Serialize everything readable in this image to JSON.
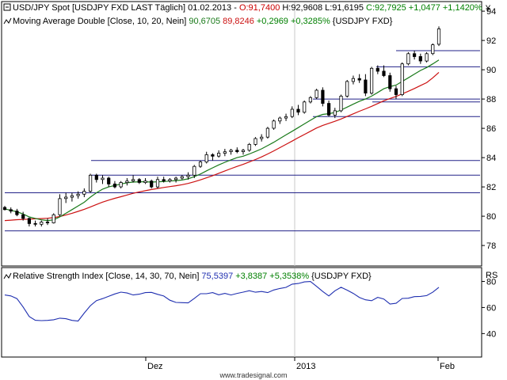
{
  "header": {
    "price_title": "USD/JPY Spot [USDJPY FXD LAST Täglich] 01.02.2013 - ",
    "ohlc_open": "O:91,7400",
    "ohlc_high": "H:92,9608",
    "ohlc_low": "L:91,6195",
    "ohlc_close": "C:92,7925",
    "change_abs": "+1,0477",
    "change_pct": "+1,1420%",
    "ma_title": "Moving Average Double [Close, 10, 20, Nein]",
    "ma_fast_value": "90,6705",
    "ma_slow_value": "89,8246",
    "ma_change_abs": "+0,2969",
    "ma_change_pct": "+0,3285%",
    "ma_symbol": "{USDJPY FXD}",
    "rsi_title": "Relative Strength Index [Close, 14, 30, 70, Nein]",
    "rsi_value": "75,5397",
    "rsi_change_abs": "+3,8387",
    "rsi_change_pct": "+5,3538%",
    "rsi_symbol": "{USDJPY FXD}"
  },
  "axis": {
    "price_unit": "¥",
    "rsi_unit": "RS",
    "watermark": "www.tradesignal.com",
    "price_ticks": [
      "94",
      "92",
      "90",
      "88",
      "86",
      "84",
      "82",
      "80",
      "78"
    ],
    "rsi_ticks": [
      "80",
      "60",
      "40"
    ],
    "time_ticks": [
      "Dez",
      "2013",
      "Feb"
    ]
  },
  "colors": {
    "up": "#000000",
    "down": "#000000",
    "up_fill": "#ffffff",
    "down_fill": "#000000",
    "ma_fast": "#1a7a1a",
    "ma_slow": "#cc1111",
    "hline": "#222288",
    "rsi": "#1f2fb0",
    "positive": "#008000",
    "negative": "#cc0000"
  },
  "chart_data": [
    {
      "type": "candlestick",
      "title": "USD/JPY Spot",
      "ylim": [
        76.6,
        94.6
      ],
      "y_ticks": [
        78,
        80,
        82,
        84,
        86,
        88,
        90,
        92,
        94
      ],
      "x_ticks": [
        "Dez",
        "2013",
        "Feb"
      ],
      "ohlc": [
        [
          80.6,
          80.7,
          80.4,
          80.45
        ],
        [
          80.45,
          80.6,
          80.2,
          80.35
        ],
        [
          80.35,
          80.5,
          80.0,
          80.1
        ],
        [
          80.1,
          80.3,
          79.7,
          79.85
        ],
        [
          79.85,
          79.9,
          79.3,
          79.5
        ],
        [
          79.5,
          79.7,
          79.3,
          79.45
        ],
        [
          79.45,
          79.7,
          79.3,
          79.6
        ],
        [
          79.6,
          79.85,
          79.4,
          79.55
        ],
        [
          79.55,
          80.2,
          79.5,
          80.1
        ],
        [
          80.1,
          81.5,
          80.0,
          81.2
        ],
        [
          81.2,
          81.6,
          80.9,
          81.3
        ],
        [
          81.3,
          81.6,
          81.0,
          81.4
        ],
        [
          81.4,
          81.7,
          81.2,
          81.5
        ],
        [
          81.5,
          81.9,
          81.3,
          81.7
        ],
        [
          81.7,
          82.9,
          81.6,
          82.8
        ],
        [
          82.8,
          82.9,
          82.3,
          82.5
        ],
        [
          82.5,
          82.8,
          82.2,
          82.6
        ],
        [
          82.6,
          82.7,
          82.0,
          82.2
        ],
        [
          82.2,
          82.4,
          81.9,
          82.0
        ],
        [
          82.0,
          82.4,
          81.9,
          82.3
        ],
        [
          82.3,
          82.6,
          82.1,
          82.4
        ],
        [
          82.4,
          82.8,
          82.3,
          82.5
        ],
        [
          82.5,
          82.6,
          82.2,
          82.3
        ],
        [
          82.3,
          82.6,
          82.2,
          82.4
        ],
        [
          82.4,
          82.5,
          81.9,
          82.0
        ],
        [
          82.0,
          82.7,
          81.9,
          82.5
        ],
        [
          82.5,
          82.7,
          82.3,
          82.4
        ],
        [
          82.4,
          82.6,
          82.3,
          82.5
        ],
        [
          82.5,
          82.7,
          82.3,
          82.6
        ],
        [
          82.6,
          82.8,
          82.5,
          82.7
        ],
        [
          82.7,
          83.0,
          82.5,
          82.8
        ],
        [
          82.8,
          83.5,
          82.6,
          83.4
        ],
        [
          83.4,
          83.8,
          83.3,
          83.7
        ],
        [
          83.7,
          84.4,
          83.6,
          84.2
        ],
        [
          84.2,
          84.3,
          83.8,
          84.1
        ],
        [
          84.1,
          84.5,
          84.0,
          84.3
        ],
        [
          84.3,
          84.6,
          84.1,
          84.4
        ],
        [
          84.4,
          84.6,
          84.2,
          84.5
        ],
        [
          84.5,
          84.7,
          84.3,
          84.4
        ],
        [
          84.4,
          84.6,
          84.2,
          84.5
        ],
        [
          84.5,
          85.0,
          84.4,
          84.9
        ],
        [
          84.9,
          85.4,
          84.8,
          85.3
        ],
        [
          85.3,
          85.6,
          85.1,
          85.4
        ],
        [
          85.4,
          86.1,
          85.3,
          86.0
        ],
        [
          86.0,
          86.6,
          85.9,
          86.5
        ],
        [
          86.5,
          86.8,
          86.3,
          86.7
        ],
        [
          86.7,
          87.0,
          86.5,
          86.8
        ],
        [
          86.8,
          87.5,
          86.7,
          87.3
        ],
        [
          87.3,
          87.6,
          86.9,
          87.1
        ],
        [
          87.1,
          87.9,
          87.0,
          87.8
        ],
        [
          87.8,
          88.2,
          87.7,
          88.1
        ],
        [
          88.1,
          88.7,
          88.0,
          88.6
        ],
        [
          88.6,
          88.8,
          87.5,
          87.7
        ],
        [
          87.7,
          87.9,
          86.8,
          86.9
        ],
        [
          86.9,
          87.4,
          86.7,
          87.2
        ],
        [
          87.2,
          88.3,
          87.1,
          88.2
        ],
        [
          88.2,
          89.3,
          88.1,
          89.2
        ],
        [
          89.2,
          89.6,
          89.0,
          89.4
        ],
        [
          89.4,
          89.7,
          89.1,
          89.3
        ],
        [
          89.3,
          89.7,
          88.2,
          88.4
        ],
        [
          88.4,
          90.2,
          88.3,
          90.1
        ],
        [
          90.1,
          90.3,
          89.7,
          89.9
        ],
        [
          89.9,
          90.3,
          89.5,
          89.6
        ],
        [
          89.6,
          89.8,
          88.5,
          88.7
        ],
        [
          88.7,
          88.9,
          88.0,
          88.3
        ],
        [
          88.3,
          90.5,
          88.2,
          90.4
        ],
        [
          90.4,
          91.2,
          90.3,
          91.1
        ],
        [
          91.1,
          91.3,
          90.7,
          90.9
        ],
        [
          90.9,
          91.1,
          90.4,
          90.6
        ],
        [
          90.6,
          91.2,
          90.5,
          91.1
        ],
        [
          91.1,
          91.8,
          91.0,
          91.7
        ],
        [
          91.74,
          92.96,
          91.62,
          92.79
        ]
      ],
      "series": [
        {
          "name": "MA 10",
          "values": [
            80.5,
            80.4,
            80.3,
            80.15,
            79.95,
            79.85,
            79.75,
            79.7,
            79.75,
            79.95,
            80.2,
            80.45,
            80.7,
            80.95,
            81.3,
            81.6,
            81.85,
            82.0,
            82.1,
            82.2,
            82.28,
            82.33,
            82.35,
            82.35,
            82.33,
            82.35,
            82.37,
            82.4,
            82.43,
            82.47,
            82.55,
            82.7,
            82.88,
            83.1,
            83.3,
            83.5,
            83.68,
            83.85,
            84.0,
            84.1,
            84.25,
            84.42,
            84.6,
            84.82,
            85.05,
            85.3,
            85.55,
            85.8,
            86.05,
            86.3,
            86.55,
            86.8,
            86.95,
            87.0,
            87.08,
            87.25,
            87.45,
            87.65,
            87.85,
            88.0,
            88.2,
            88.45,
            88.7,
            88.85,
            88.95,
            89.2,
            89.45,
            89.7,
            89.95,
            90.15,
            90.4,
            90.67
          ]
        },
        {
          "name": "MA 20",
          "values": [
            79.7,
            79.73,
            79.76,
            79.78,
            79.8,
            79.82,
            79.84,
            79.86,
            79.9,
            79.98,
            80.08,
            80.2,
            80.33,
            80.47,
            80.63,
            80.8,
            80.96,
            81.1,
            81.22,
            81.33,
            81.45,
            81.56,
            81.66,
            81.74,
            81.82,
            81.89,
            81.96,
            82.02,
            82.08,
            82.15,
            82.24,
            82.35,
            82.48,
            82.62,
            82.77,
            82.93,
            83.09,
            83.25,
            83.4,
            83.54,
            83.7,
            83.87,
            84.05,
            84.25,
            84.46,
            84.68,
            84.9,
            85.13,
            85.36,
            85.58,
            85.8,
            86.02,
            86.2,
            86.34,
            86.48,
            86.64,
            86.81,
            86.99,
            87.17,
            87.33,
            87.5,
            87.69,
            87.88,
            88.04,
            88.18,
            88.35,
            88.53,
            88.72,
            88.92,
            89.12,
            89.45,
            89.82
          ]
        },
        {
          "name": "Relative Strength Index",
          "values": [
            69.6,
            68.9,
            66.8,
            60.4,
            53.1,
            50.2,
            49.9,
            50.1,
            50.6,
            51.8,
            51.4,
            50.1,
            49.6,
            55.7,
            61.4,
            65.3,
            66.8,
            68.6,
            70.4,
            71.8,
            71.1,
            69.6,
            70.2,
            71.4,
            71.6,
            70.1,
            68.8,
            65.6,
            63.9,
            63.7,
            63.5,
            67.0,
            70.6,
            70.6,
            71.4,
            69.7,
            70.8,
            69.6,
            70.8,
            71.8,
            72.9,
            71.7,
            72.3,
            71.4,
            73.4,
            74.6,
            75.4,
            77.9,
            78.4,
            79.6,
            79.9,
            76.2,
            72.3,
            68.9,
            72.8,
            75.5,
            73.3,
            70.8,
            67.7,
            65.9,
            65.2,
            67.8,
            66.5,
            62.7,
            63.2,
            66.9,
            67.1,
            68.3,
            68.5,
            69.1,
            71.7,
            75.5
          ]
        }
      ],
      "horizontal_levels": [
        91.3,
        90.2,
        88.0,
        87.8,
        86.8,
        83.8,
        82.8,
        81.6,
        79.0
      ],
      "rsi_ylim": [
        22,
        90
      ],
      "rsi_ticks": [
        40,
        60,
        80
      ]
    }
  ]
}
